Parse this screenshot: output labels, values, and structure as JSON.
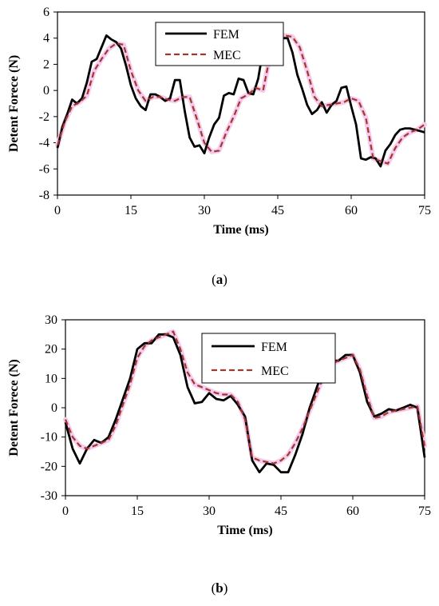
{
  "figure": {
    "caption_a_prefix": "(",
    "caption_a_letter": "a",
    "caption_a_suffix": ")",
    "caption_b_prefix": "(",
    "caption_b_letter": "b",
    "caption_b_suffix": ")"
  },
  "chart_data": [
    {
      "type": "line",
      "title": "",
      "xlabel": "Time (ms)",
      "ylabel": "Detent Forece  (N)",
      "xlim": [
        0,
        75
      ],
      "ylim": [
        -8,
        6
      ],
      "xticks": [
        0,
        15,
        30,
        45,
        60,
        75
      ],
      "yticks": [
        -8,
        -6,
        -4,
        -2,
        0,
        2,
        4,
        6
      ],
      "grid": false,
      "legend_position": "top-center",
      "colors": {
        "FEM": "#000000",
        "MEC": "#a0392b",
        "glow": "#f6c9ee"
      },
      "series": [
        {
          "name": "FEM",
          "style": "solid",
          "x": [
            0,
            1,
            2,
            3,
            4,
            5,
            6,
            7,
            8,
            9,
            10,
            11,
            12,
            13,
            14,
            15,
            16,
            17,
            18,
            19,
            20,
            21,
            22,
            23,
            24,
            25,
            26,
            27,
            28,
            29,
            30,
            31,
            32,
            33,
            34,
            35,
            36,
            37,
            38,
            39,
            40,
            41,
            42,
            43,
            44,
            45,
            46,
            47,
            48,
            49,
            50,
            51,
            52,
            53,
            54,
            55,
            56,
            57,
            58,
            59,
            60,
            61,
            62,
            63,
            64,
            65,
            66,
            67,
            68,
            69,
            70,
            71,
            72,
            73,
            74,
            75
          ],
          "values": [
            -4.4,
            -2.8,
            -1.8,
            -0.7,
            -1.0,
            -0.6,
            0.6,
            2.2,
            2.4,
            3.3,
            4.2,
            3.9,
            3.7,
            3.2,
            1.9,
            0.4,
            -0.6,
            -1.2,
            -1.5,
            -0.3,
            -0.3,
            -0.5,
            -0.8,
            -0.6,
            0.8,
            0.8,
            -1.6,
            -3.6,
            -4.3,
            -4.2,
            -4.8,
            -3.6,
            -2.6,
            -2.1,
            -0.4,
            -0.2,
            -0.3,
            0.9,
            0.8,
            -0.2,
            -0.3,
            0.9,
            3.1,
            3.1,
            4.3,
            4.7,
            4.0,
            4.0,
            2.9,
            1.2,
            0.1,
            -1.1,
            -1.8,
            -1.5,
            -0.9,
            -1.7,
            -1.1,
            -0.8,
            0.2,
            0.3,
            -1.2,
            -2.6,
            -5.2,
            -5.3,
            -5.1,
            -5.2,
            -5.8,
            -4.6,
            -4.1,
            -3.4,
            -3.0,
            -2.9,
            -2.9,
            -3.0,
            -3.1,
            -3.2
          ]
        },
        {
          "name": "MEC",
          "style": "dashed",
          "x": [
            0,
            1.5,
            3,
            4.5,
            6,
            7.5,
            9,
            10.5,
            12,
            13.5,
            15,
            16.5,
            18,
            19.5,
            21,
            22.5,
            24,
            25.5,
            27,
            28.5,
            30,
            31.5,
            33,
            34.5,
            36,
            37.5,
            39,
            40.5,
            42,
            43.5,
            45,
            46.5,
            48,
            49.5,
            51,
            52.5,
            54,
            55.5,
            57,
            58.5,
            60,
            61.5,
            63,
            64.5,
            66,
            67.5,
            69,
            70.5,
            72,
            73.5,
            75
          ],
          "values": [
            -4.2,
            -2.4,
            -1.2,
            -0.9,
            -0.4,
            1.5,
            2.4,
            3.2,
            3.6,
            3.5,
            1.5,
            0.0,
            -0.8,
            -0.5,
            -0.5,
            -0.7,
            -0.8,
            -0.5,
            -0.5,
            -2.2,
            -4.0,
            -4.7,
            -4.6,
            -3.2,
            -2.0,
            -0.6,
            -0.3,
            0.2,
            0.0,
            2.8,
            3.6,
            4.2,
            4.1,
            3.3,
            1.5,
            -0.5,
            -1.2,
            -1.1,
            -1.0,
            -0.9,
            -0.6,
            -0.8,
            -2.1,
            -5.2,
            -5.4,
            -5.6,
            -4.4,
            -3.6,
            -3.2,
            -3.0,
            -2.6
          ]
        }
      ]
    },
    {
      "type": "line",
      "title": "",
      "xlabel": "Time (ms)",
      "ylabel": "Detent Forece  (N)",
      "xlim": [
        0,
        75
      ],
      "ylim": [
        -30,
        30
      ],
      "xticks": [
        0,
        15,
        30,
        45,
        60,
        75
      ],
      "yticks": [
        -30,
        -20,
        -10,
        0,
        10,
        20,
        30
      ],
      "grid": false,
      "legend_position": "top-right",
      "colors": {
        "FEM": "#000000",
        "MEC": "#a0392b",
        "glow": "#f6c9ee"
      },
      "series": [
        {
          "name": "FEM",
          "style": "solid",
          "x": [
            0,
            1.5,
            3,
            4.5,
            6,
            7.5,
            9,
            10.5,
            12,
            13.5,
            15,
            16.5,
            18,
            19.5,
            21,
            22.5,
            24,
            25.5,
            27,
            28.5,
            30,
            31.5,
            33,
            34.5,
            36,
            37.5,
            39,
            40.5,
            42,
            43.5,
            45,
            46.5,
            48,
            49.5,
            51,
            52.5,
            54,
            55.5,
            57,
            58.5,
            60,
            61.5,
            63,
            64.5,
            66,
            67.5,
            69,
            70.5,
            72,
            73.5,
            75
          ],
          "values": [
            -5,
            -14,
            -19,
            -14,
            -11,
            -12,
            -10,
            -4,
            3,
            10,
            20,
            22,
            22,
            25,
            25,
            24,
            18,
            7,
            1.5,
            2,
            5,
            3,
            2.5,
            4,
            1,
            -3,
            -18,
            -22,
            -19,
            -19.5,
            -22,
            -22,
            -16,
            -9,
            0,
            7,
            14,
            16,
            16,
            18,
            18,
            12,
            2,
            -3,
            -2,
            -0.5,
            -1,
            0,
            1,
            0,
            -17
          ]
        },
        {
          "name": "MEC",
          "style": "dashed",
          "x": [
            0,
            1.5,
            3,
            4.5,
            6,
            7.5,
            9,
            10.5,
            12,
            13.5,
            15,
            16.5,
            18,
            19.5,
            21,
            22.5,
            24,
            25.5,
            27,
            28.5,
            30,
            31.5,
            33,
            34.5,
            36,
            37.5,
            39,
            40.5,
            42,
            43.5,
            45,
            46.5,
            48,
            49.5,
            51,
            52.5,
            54,
            55.5,
            57,
            58.5,
            60,
            61.5,
            63,
            64.5,
            66,
            67.5,
            69,
            70.5,
            72,
            73.5,
            75
          ],
          "values": [
            -4,
            -10,
            -13,
            -14,
            -13,
            -12,
            -11,
            -6,
            1,
            8,
            17,
            21,
            23,
            24,
            25,
            26,
            20,
            12,
            8,
            7,
            6,
            5,
            4.5,
            4.5,
            2,
            -4,
            -17,
            -18,
            -18.5,
            -19,
            -18,
            -16,
            -12,
            -7,
            -1,
            5,
            11,
            15,
            16,
            17,
            18,
            13,
            4,
            -3.5,
            -3,
            -1.5,
            -1,
            -0.5,
            0,
            0.5,
            -13
          ]
        }
      ]
    }
  ]
}
